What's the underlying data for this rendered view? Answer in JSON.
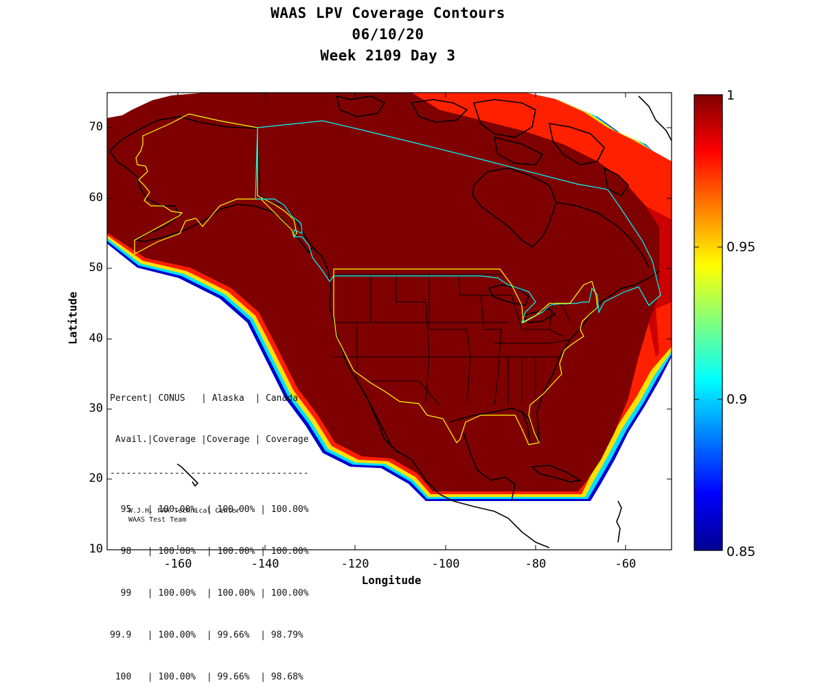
{
  "title": {
    "line1": "WAAS LPV Coverage Contours",
    "line2": "06/10/20",
    "line3": "Week 2109 Day 3"
  },
  "axes": {
    "xlabel": "Longitude",
    "ylabel": "Latitude",
    "xlim": [
      -175,
      -50
    ],
    "ylim": [
      10,
      75
    ],
    "xticks": [
      "-160",
      "-140",
      "-120",
      "-100",
      "-80",
      "-60"
    ],
    "yticks": [
      "70",
      "60",
      "50",
      "40",
      "30",
      "20",
      "10"
    ]
  },
  "colorbar": {
    "min": 0.85,
    "max": 1,
    "ticks": [
      "1",
      "0.95",
      "0.9",
      "0.85"
    ],
    "colormap": "jet"
  },
  "colors": {
    "coverage_full": "#7f0000",
    "coverage_high": "#cc0000",
    "coverage_mid": "#ff2a00",
    "coverage_low": "#ffaa00",
    "coverage_edge": "#00bfff",
    "coverage_min": "#00008f",
    "region_outline_conus": "#ffff00",
    "region_outline_canada": "#00ffff",
    "coastline": "#000000"
  },
  "stats_table": {
    "header1": "Percent| CONUS   | Alaska  | Canada",
    "header2": " Avail.|Coverage |Coverage | Coverage",
    "divider": "-------------------------------------",
    "rows": [
      "  95   | 100.00%  | 100.00% | 100.00%",
      "  98   | 100.00%  | 100.00% | 100.00%",
      "  99   | 100.00%  | 100.00% | 100.00%",
      "99.9   | 100.00%  | 99.66%  | 98.79%",
      " 100   | 100.00%  | 99.66%  | 98.68%"
    ]
  },
  "credits": {
    "line1": "W.J.H. FAA Technical Center",
    "line2": "WAAS Test Team"
  }
}
